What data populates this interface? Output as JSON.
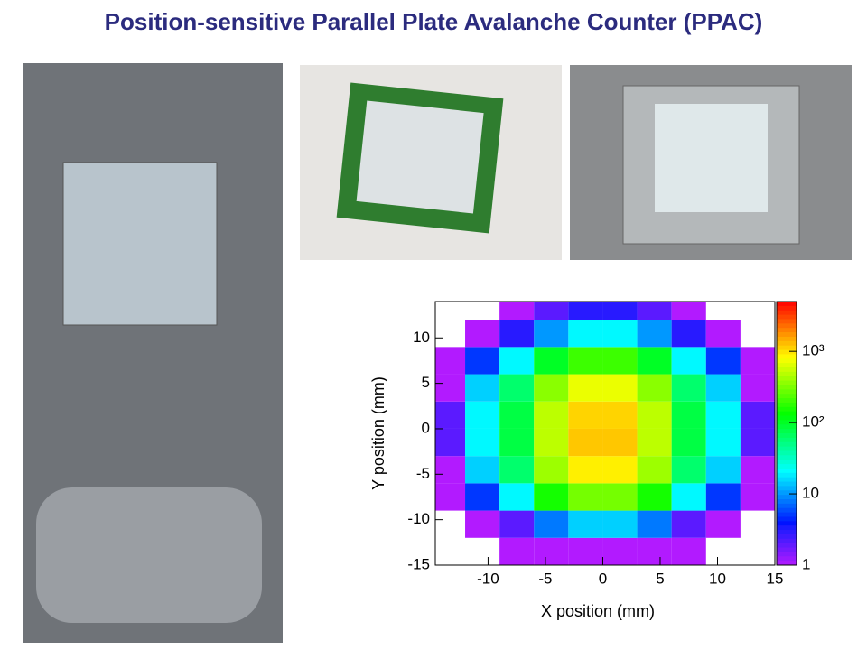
{
  "title": "Position-sensitive Parallel Plate Avalanche Counter (PPAC)",
  "chart_data": {
    "type": "heatmap",
    "xlabel": "X position (mm)",
    "ylabel": "Y position (mm)",
    "xlim": [
      -14.6,
      15
    ],
    "ylim": [
      -15,
      14
    ],
    "xticks": [
      -10,
      -5,
      0,
      5,
      10,
      15
    ],
    "yticks": [
      -15,
      -10,
      -5,
      0,
      5,
      10
    ],
    "x": [
      -13.5,
      -10.5,
      -7.5,
      -4.5,
      -1.5,
      1.5,
      4.5,
      7.5,
      10.5,
      13.5
    ],
    "y": [
      -13.5,
      -10.5,
      -7.5,
      -4.5,
      -1.5,
      1.5,
      4.5,
      7.5,
      10.5,
      13.5
    ],
    "z": [
      [
        0,
        0,
        1,
        1,
        1,
        1,
        1,
        1,
        0,
        0
      ],
      [
        0,
        1,
        2,
        8,
        15,
        15,
        8,
        2,
        1,
        0
      ],
      [
        1,
        5,
        20,
        150,
        300,
        300,
        150,
        20,
        5,
        1
      ],
      [
        1,
        15,
        60,
        400,
        900,
        900,
        400,
        60,
        15,
        1
      ],
      [
        2,
        20,
        80,
        500,
        1200,
        1200,
        500,
        80,
        20,
        2
      ],
      [
        2,
        20,
        80,
        500,
        1100,
        1100,
        500,
        80,
        20,
        2
      ],
      [
        1,
        15,
        60,
        350,
        700,
        700,
        350,
        60,
        15,
        1
      ],
      [
        1,
        5,
        20,
        100,
        200,
        200,
        100,
        20,
        5,
        1
      ],
      [
        0,
        1,
        3,
        10,
        20,
        20,
        10,
        3,
        1,
        0
      ],
      [
        0,
        0,
        1,
        2,
        3,
        3,
        2,
        1,
        0,
        0
      ]
    ],
    "zscale": "log",
    "zlim": [
      1,
      5000
    ],
    "zticks": [
      1,
      10,
      {
        "value": 100,
        "label": "10²"
      },
      {
        "value": 1000,
        "label": "10³"
      }
    ]
  }
}
